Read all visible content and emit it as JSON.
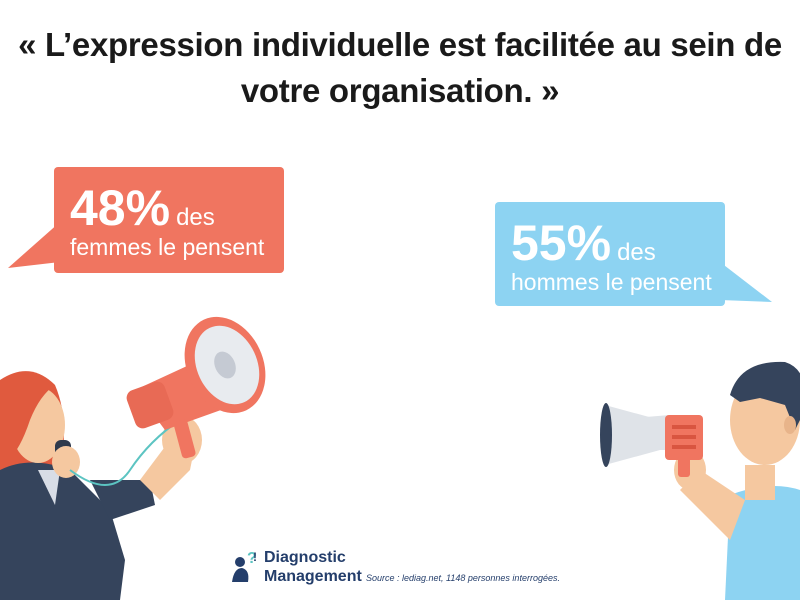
{
  "title": {
    "line1": "« L’expression individuelle est facilitée au sein de",
    "line2": "votre organisation. »"
  },
  "women": {
    "percent": "48%",
    "des": "des",
    "line2": "femmes le pensent",
    "value": 48,
    "color": "#f07560"
  },
  "men": {
    "percent": "55%",
    "des": "des",
    "line2": "hommes le pensent",
    "value": 55,
    "color": "#8dd3f2"
  },
  "logo": {
    "line1": "Diagnostic",
    "line2": "Management",
    "icon": "person-question-mark-icon"
  },
  "source": "Source : lediag.net, 1148 personnes interrogées."
}
